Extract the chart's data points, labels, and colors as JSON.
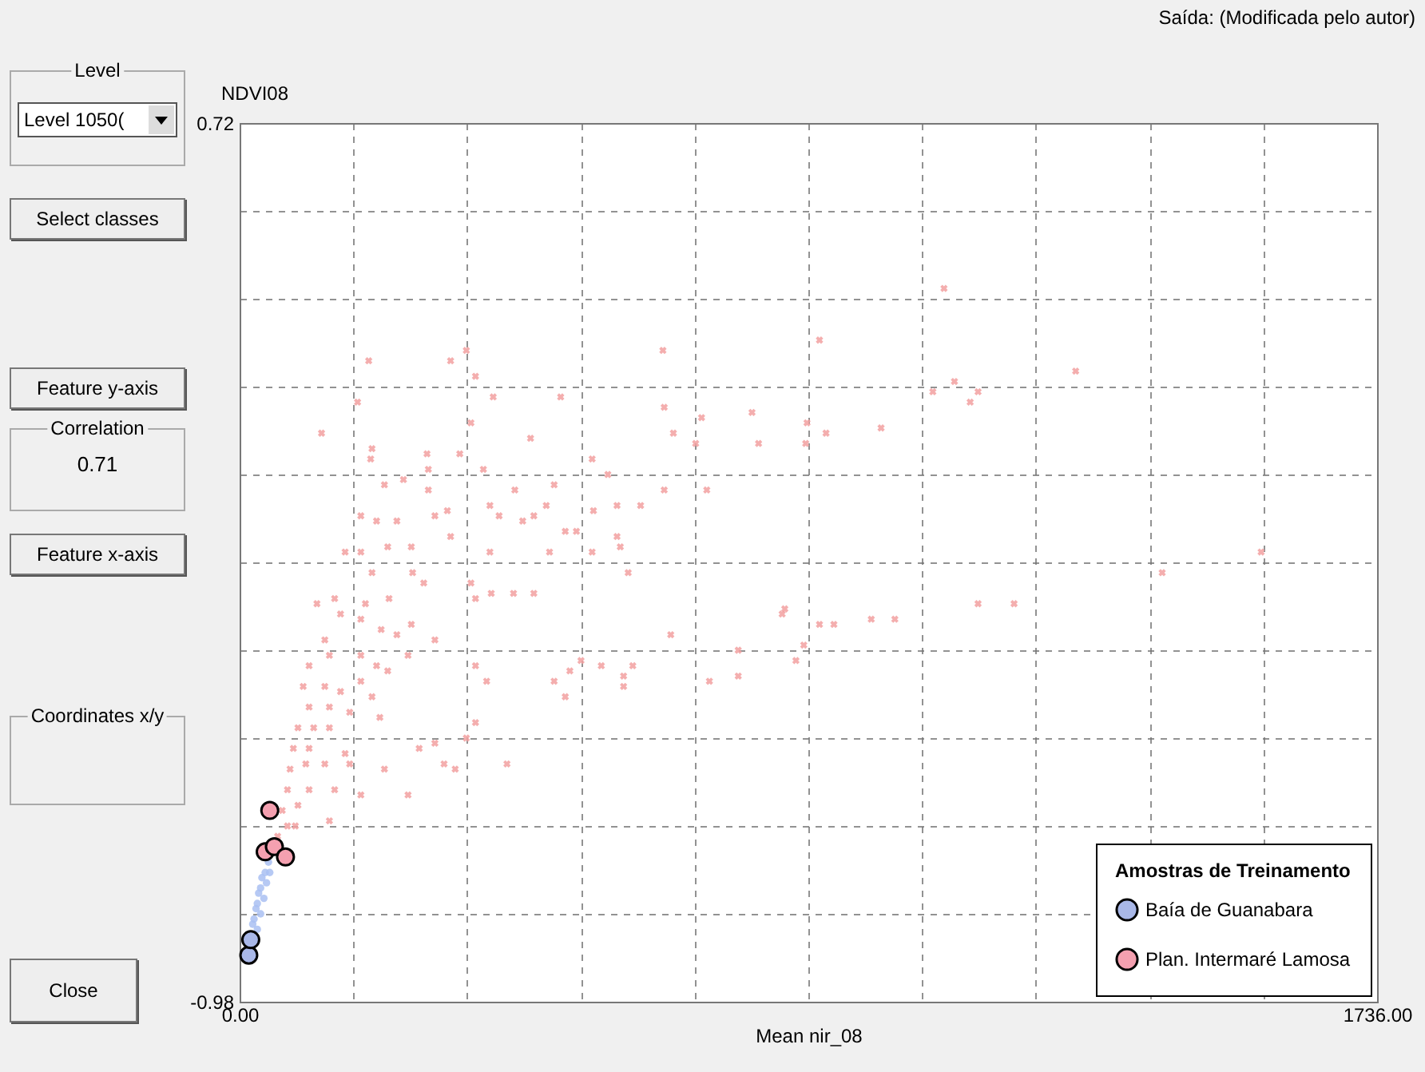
{
  "chart_data": {
    "type": "scatter",
    "xlabel": "Mean nir_08",
    "ylabel": "NDVI08",
    "legend_title": "Amostras de Treinamento",
    "annotations": [
      "Saída: (Modificada pelo autor)",
      "Level",
      "Level 1050(",
      "Select classes",
      "Feature y-axis",
      "Correlation",
      "0.71",
      "Feature x-axis",
      "Coordinates x/y",
      "Close"
    ],
    "xlim": [
      0,
      1736
    ],
    "ylim": [
      -0.98,
      0.72
    ],
    "xticks": [
      {
        "value": 0,
        "label": "0.00"
      },
      {
        "value": 173.6,
        "label": null
      },
      {
        "value": 347.2,
        "label": null
      },
      {
        "value": 520.8,
        "label": null
      },
      {
        "value": 694.4,
        "label": null
      },
      {
        "value": 868,
        "label": null
      },
      {
        "value": 1041.6,
        "label": null
      },
      {
        "value": 1215.2,
        "label": null
      },
      {
        "value": 1388.8,
        "label": null
      },
      {
        "value": 1562.4,
        "label": null
      },
      {
        "value": 1736,
        "label": "1736.00"
      }
    ],
    "yticks": [
      {
        "value": -0.98,
        "label": "-0.98"
      },
      {
        "value": -0.81,
        "label": null
      },
      {
        "value": -0.64,
        "label": null
      },
      {
        "value": -0.47,
        "label": null
      },
      {
        "value": -0.3,
        "label": null
      },
      {
        "value": -0.13,
        "label": null
      },
      {
        "value": 0.04,
        "label": null
      },
      {
        "value": 0.21,
        "label": null
      },
      {
        "value": 0.38,
        "label": null
      },
      {
        "value": 0.55,
        "label": null
      },
      {
        "value": 0.72,
        "label": "0.72"
      }
    ],
    "grid": true,
    "legend": "bottom right",
    "series": [
      {
        "color": "#f2a0a0",
        "marker": "cross",
        "x": [
          197,
          322,
          346,
          360,
          387,
          490,
          180,
          125,
          353,
          444,
          646,
          648,
          662,
          705,
          782,
          792,
          696,
          202,
          200,
          286,
          288,
          336,
          372,
          250,
          221,
          288,
          420,
          480,
          538,
          562,
          648,
          713,
          185,
          209,
          240,
          298,
          317,
          382,
          396,
          449,
          468,
          432,
          497,
          514,
          540,
          576,
          612,
          161,
          185,
          226,
          262,
          322,
          382,
          473,
          576,
          581,
          538,
          1075,
          885,
          1276,
          1058,
          1091,
          1115,
          1127,
          866,
          864,
          895,
          979,
          1559,
          202,
          264,
          281,
          353,
          360,
          384,
          418,
          449,
          593,
          118,
          145,
          154,
          192,
          228,
          185,
          216,
          240,
          262,
          298,
          130,
          137,
          185,
          209,
          226,
          257,
          106,
          97,
          130,
          154,
          185,
          202,
          106,
          137,
          168,
          214,
          89,
          113,
          137,
          82,
          106,
          161,
          77,
          101,
          130,
          168,
          221,
          73,
          106,
          145,
          185,
          257,
          65,
          89,
          137,
          85,
          58,
          73,
          274,
          298,
          312,
          329,
          346,
          360,
          408,
          360,
          377,
          480,
          497,
          504,
          521,
          552,
          586,
          600,
          586,
          658,
          717,
          761,
          761,
          828,
          849,
          832,
          885,
          907,
          964,
          1000,
          1127,
          1182,
          861,
          1408
        ],
        "values": [
          0.26,
          0.26,
          0.28,
          0.23,
          0.19,
          0.19,
          0.18,
          0.12,
          0.14,
          0.11,
          0.28,
          0.17,
          0.12,
          0.15,
          0.16,
          0.1,
          0.1,
          0.09,
          0.07,
          0.08,
          0.05,
          0.08,
          0.05,
          0.03,
          0.02,
          0.01,
          0.01,
          0.02,
          0.07,
          0.04,
          0.01,
          0.01,
          -0.04,
          -0.05,
          -0.05,
          -0.04,
          -0.03,
          -0.02,
          -0.04,
          -0.04,
          -0.02,
          -0.05,
          -0.07,
          -0.07,
          -0.03,
          -0.02,
          -0.02,
          -0.11,
          -0.11,
          -0.1,
          -0.1,
          -0.08,
          -0.11,
          -0.11,
          -0.08,
          -0.1,
          -0.11,
          0.4,
          0.3,
          0.24,
          0.2,
          0.22,
          0.18,
          0.2,
          0.14,
          0.1,
          0.12,
          0.13,
          -0.11,
          -0.15,
          -0.15,
          -0.17,
          -0.17,
          -0.2,
          -0.19,
          -0.19,
          -0.19,
          -0.15,
          -0.21,
          -0.2,
          -0.23,
          -0.21,
          -0.2,
          -0.24,
          -0.26,
          -0.27,
          -0.25,
          -0.28,
          -0.28,
          -0.31,
          -0.31,
          -0.33,
          -0.34,
          -0.31,
          -0.33,
          -0.37,
          -0.37,
          -0.38,
          -0.36,
          -0.39,
          -0.41,
          -0.41,
          -0.42,
          -0.43,
          -0.45,
          -0.45,
          -0.45,
          -0.49,
          -0.49,
          -0.5,
          -0.53,
          -0.52,
          -0.52,
          -0.52,
          -0.53,
          -0.57,
          -0.57,
          -0.57,
          -0.58,
          -0.58,
          -0.61,
          -0.6,
          -0.63,
          -0.64,
          -0.66,
          -0.64,
          -0.49,
          -0.48,
          -0.52,
          -0.53,
          -0.47,
          -0.44,
          -0.52,
          -0.33,
          -0.36,
          -0.36,
          -0.39,
          -0.34,
          -0.32,
          -0.33,
          -0.35,
          -0.33,
          -0.37,
          -0.27,
          -0.36,
          -0.35,
          -0.3,
          -0.23,
          -0.32,
          -0.22,
          -0.25,
          -0.25,
          -0.24,
          -0.24,
          -0.21,
          -0.21,
          -0.29,
          -0.15
        ]
      },
      {
        "color": "#a9c0f2",
        "marker": "circle",
        "x": [
          20,
          22,
          25,
          27,
          29,
          32,
          34,
          39,
          44,
          27,
          32,
          37,
          41,
          46
        ],
        "values": [
          -0.83,
          -0.82,
          -0.8,
          -0.79,
          -0.77,
          -0.76,
          -0.74,
          -0.73,
          -0.71,
          -0.84,
          -0.81,
          -0.78,
          -0.75,
          -0.73
        ]
      },
      {
        "name": "Baía de Guanabara",
        "color": "#a9b8e8",
        "marker": "circle",
        "x": [
          14,
          17
        ],
        "values": [
          -0.89,
          -0.86
        ]
      },
      {
        "name": "Plan. Intermaré Lamosa",
        "color": "#f4a0b0",
        "marker": "circle",
        "x": [
          46,
          39,
          53,
          70
        ],
        "values": [
          -0.61,
          -0.69,
          -0.68,
          -0.7
        ]
      }
    ]
  }
}
